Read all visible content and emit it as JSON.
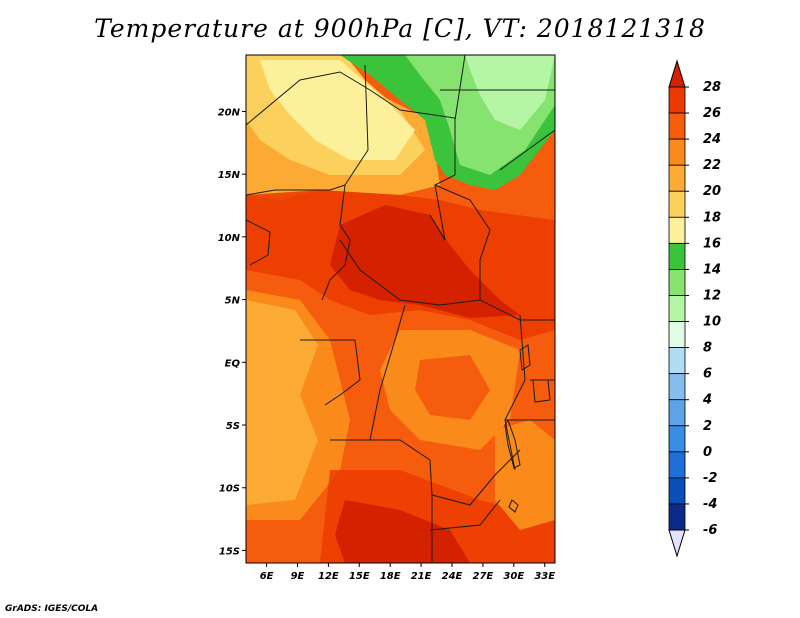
{
  "title": "Temperature at 900hPa [C], VT: 2018121318",
  "credit": "GrADS: IGES/COLA",
  "map": {
    "lon_range": [
      4,
      34
    ],
    "lat_range": [
      -16,
      24.5
    ],
    "lon_ticks": [
      {
        "value": 6,
        "label": "6E"
      },
      {
        "value": 9,
        "label": "9E"
      },
      {
        "value": 12,
        "label": "12E"
      },
      {
        "value": 15,
        "label": "15E"
      },
      {
        "value": 18,
        "label": "18E"
      },
      {
        "value": 21,
        "label": "21E"
      },
      {
        "value": 24,
        "label": "24E"
      },
      {
        "value": 27,
        "label": "27E"
      },
      {
        "value": 30,
        "label": "30E"
      },
      {
        "value": 33,
        "label": "33E"
      }
    ],
    "lat_ticks": [
      {
        "value": 20,
        "label": "20N"
      },
      {
        "value": 15,
        "label": "15N"
      },
      {
        "value": 10,
        "label": "10N"
      },
      {
        "value": 5,
        "label": "5N"
      },
      {
        "value": 0,
        "label": "EQ"
      },
      {
        "value": -5,
        "label": "5S"
      },
      {
        "value": -10,
        "label": "10S"
      },
      {
        "value": -15,
        "label": "15S"
      }
    ]
  },
  "colorbar": {
    "labels": [
      "28",
      "26",
      "24",
      "22",
      "20",
      "18",
      "16",
      "14",
      "12",
      "10",
      "8",
      "6",
      "4",
      "2",
      "0",
      "-2",
      "-4",
      "-6"
    ],
    "colors": [
      "#d42200",
      "#eb3a00",
      "#f65c0d",
      "#fa8a1a",
      "#fbaa34",
      "#fcd05c",
      "#fdf09a",
      "#3cc33c",
      "#86e36f",
      "#b4f5a6",
      "#e2fbe6",
      "#b2dcf4",
      "#86bdef",
      "#5ea3e8",
      "#3a8de4",
      "#1e6ed8",
      "#0c4eb8",
      "#0a2a88",
      "#0a1060"
    ],
    "over_color": "#d42200",
    "under_color": "#e2e2ff"
  }
}
